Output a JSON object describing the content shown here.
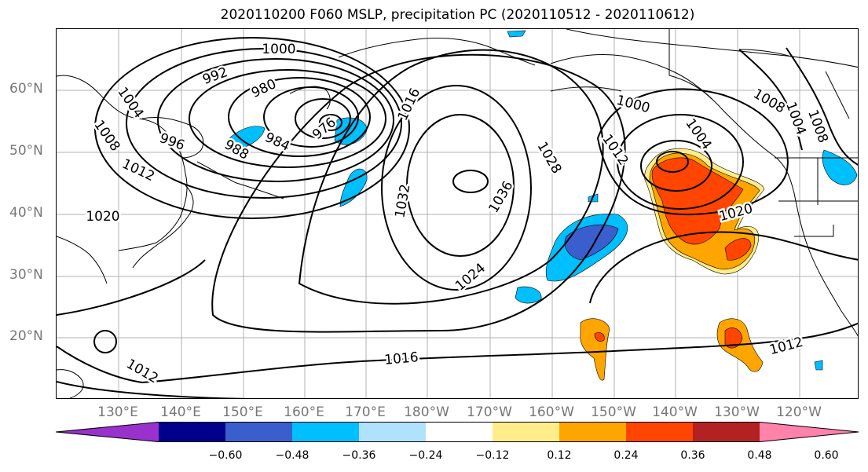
{
  "title": "2020110200 F060 MSLP, precipitation PC (2020110512 - 2020110612)",
  "lat_labels": [
    "60°N",
    "50°N",
    "40°N",
    "30°N",
    "20°N"
  ],
  "lon_labels": [
    "130°E",
    "140°E",
    "150°E",
    "160°E",
    "170°E",
    "180°W",
    "170°W",
    "160°W",
    "150°W",
    "140°W",
    "130°W",
    "120°W"
  ],
  "contour_labels": [
    "1000",
    "992",
    "980",
    "976",
    "988",
    "984",
    "996",
    "1004",
    "1008",
    "1012",
    "1020",
    "1016",
    "1032",
    "1036",
    "1028",
    "1024",
    "1016",
    "1012",
    "1000",
    "1004",
    "1012",
    "1020",
    "1008",
    "1004",
    "1012",
    "1008"
  ],
  "colorbar": {
    "colors": [
      "#9932cc",
      "#00008b",
      "#3a5fcd",
      "#00bfff",
      "#b0e2ff",
      "#ffffff",
      "#ffec8b",
      "#ffa500",
      "#ff4500",
      "#b22222",
      "#ff82ab"
    ],
    "ticks": [
      "−0.60",
      "−0.48",
      "−0.36",
      "−0.24",
      "−0.12",
      "0.12",
      "0.24",
      "0.36",
      "0.48",
      "0.60"
    ]
  }
}
